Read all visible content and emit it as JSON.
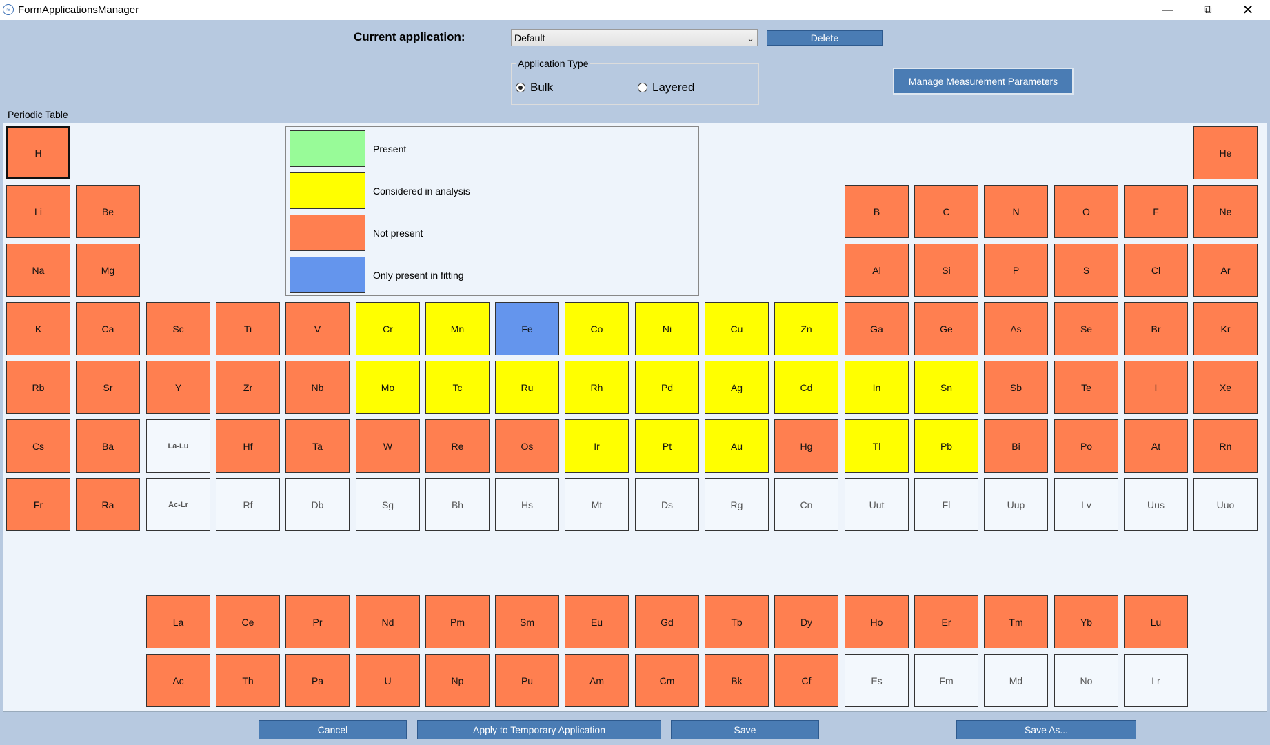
{
  "window": {
    "title": "FormApplicationsManager"
  },
  "header": {
    "current_application_label": "Current application:",
    "current_application_value": "Default",
    "delete_label": "Delete",
    "application_type_title": "Application Type",
    "radio_bulk": "Bulk",
    "radio_layered": "Layered",
    "selected_type": "Bulk",
    "manage_button": "Manage Measurement Parameters"
  },
  "periodic_table": {
    "title": "Periodic Table",
    "legend": [
      {
        "label": "Present",
        "color": "#98fb98"
      },
      {
        "label": "Considered in analysis",
        "color": "#ffff00"
      },
      {
        "label": "Not present",
        "color": "#ff7f50"
      },
      {
        "label": "Only present in fitting",
        "color": "#6495ed"
      }
    ],
    "selected": "H",
    "elements": [
      {
        "s": "H",
        "r": 1,
        "c": 1,
        "st": "np"
      },
      {
        "s": "He",
        "r": 1,
        "c": 18,
        "st": "np"
      },
      {
        "s": "Li",
        "r": 2,
        "c": 1,
        "st": "np"
      },
      {
        "s": "Be",
        "r": 2,
        "c": 2,
        "st": "np"
      },
      {
        "s": "B",
        "r": 2,
        "c": 13,
        "st": "np"
      },
      {
        "s": "C",
        "r": 2,
        "c": 14,
        "st": "np"
      },
      {
        "s": "N",
        "r": 2,
        "c": 15,
        "st": "np"
      },
      {
        "s": "O",
        "r": 2,
        "c": 16,
        "st": "np"
      },
      {
        "s": "F",
        "r": 2,
        "c": 17,
        "st": "np"
      },
      {
        "s": "Ne",
        "r": 2,
        "c": 18,
        "st": "np"
      },
      {
        "s": "Na",
        "r": 3,
        "c": 1,
        "st": "np"
      },
      {
        "s": "Mg",
        "r": 3,
        "c": 2,
        "st": "np"
      },
      {
        "s": "Al",
        "r": 3,
        "c": 13,
        "st": "np"
      },
      {
        "s": "Si",
        "r": 3,
        "c": 14,
        "st": "np"
      },
      {
        "s": "P",
        "r": 3,
        "c": 15,
        "st": "np"
      },
      {
        "s": "S",
        "r": 3,
        "c": 16,
        "st": "np"
      },
      {
        "s": "Cl",
        "r": 3,
        "c": 17,
        "st": "np"
      },
      {
        "s": "Ar",
        "r": 3,
        "c": 18,
        "st": "np"
      },
      {
        "s": "K",
        "r": 4,
        "c": 1,
        "st": "np"
      },
      {
        "s": "Ca",
        "r": 4,
        "c": 2,
        "st": "np"
      },
      {
        "s": "Sc",
        "r": 4,
        "c": 3,
        "st": "np"
      },
      {
        "s": "Ti",
        "r": 4,
        "c": 4,
        "st": "np"
      },
      {
        "s": "V",
        "r": 4,
        "c": 5,
        "st": "np"
      },
      {
        "s": "Cr",
        "r": 4,
        "c": 6,
        "st": "ca"
      },
      {
        "s": "Mn",
        "r": 4,
        "c": 7,
        "st": "ca"
      },
      {
        "s": "Fe",
        "r": 4,
        "c": 8,
        "st": "fit"
      },
      {
        "s": "Co",
        "r": 4,
        "c": 9,
        "st": "ca"
      },
      {
        "s": "Ni",
        "r": 4,
        "c": 10,
        "st": "ca"
      },
      {
        "s": "Cu",
        "r": 4,
        "c": 11,
        "st": "ca"
      },
      {
        "s": "Zn",
        "r": 4,
        "c": 12,
        "st": "ca"
      },
      {
        "s": "Ga",
        "r": 4,
        "c": 13,
        "st": "np"
      },
      {
        "s": "Ge",
        "r": 4,
        "c": 14,
        "st": "np"
      },
      {
        "s": "As",
        "r": 4,
        "c": 15,
        "st": "np"
      },
      {
        "s": "Se",
        "r": 4,
        "c": 16,
        "st": "np"
      },
      {
        "s": "Br",
        "r": 4,
        "c": 17,
        "st": "np"
      },
      {
        "s": "Kr",
        "r": 4,
        "c": 18,
        "st": "np"
      },
      {
        "s": "Rb",
        "r": 5,
        "c": 1,
        "st": "np"
      },
      {
        "s": "Sr",
        "r": 5,
        "c": 2,
        "st": "np"
      },
      {
        "s": "Y",
        "r": 5,
        "c": 3,
        "st": "np"
      },
      {
        "s": "Zr",
        "r": 5,
        "c": 4,
        "st": "np"
      },
      {
        "s": "Nb",
        "r": 5,
        "c": 5,
        "st": "np"
      },
      {
        "s": "Mo",
        "r": 5,
        "c": 6,
        "st": "ca"
      },
      {
        "s": "Tc",
        "r": 5,
        "c": 7,
        "st": "ca"
      },
      {
        "s": "Ru",
        "r": 5,
        "c": 8,
        "st": "ca"
      },
      {
        "s": "Rh",
        "r": 5,
        "c": 9,
        "st": "ca"
      },
      {
        "s": "Pd",
        "r": 5,
        "c": 10,
        "st": "ca"
      },
      {
        "s": "Ag",
        "r": 5,
        "c": 11,
        "st": "ca"
      },
      {
        "s": "Cd",
        "r": 5,
        "c": 12,
        "st": "ca"
      },
      {
        "s": "In",
        "r": 5,
        "c": 13,
        "st": "ca"
      },
      {
        "s": "Sn",
        "r": 5,
        "c": 14,
        "st": "ca"
      },
      {
        "s": "Sb",
        "r": 5,
        "c": 15,
        "st": "np"
      },
      {
        "s": "Te",
        "r": 5,
        "c": 16,
        "st": "np"
      },
      {
        "s": "I",
        "r": 5,
        "c": 17,
        "st": "np"
      },
      {
        "s": "Xe",
        "r": 5,
        "c": 18,
        "st": "np"
      },
      {
        "s": "Cs",
        "r": 6,
        "c": 1,
        "st": "np"
      },
      {
        "s": "Ba",
        "r": 6,
        "c": 2,
        "st": "np"
      },
      {
        "s": "La-Lu",
        "r": 6,
        "c": 3,
        "st": "na",
        "small": true
      },
      {
        "s": "Hf",
        "r": 6,
        "c": 4,
        "st": "np"
      },
      {
        "s": "Ta",
        "r": 6,
        "c": 5,
        "st": "np"
      },
      {
        "s": "W",
        "r": 6,
        "c": 6,
        "st": "np"
      },
      {
        "s": "Re",
        "r": 6,
        "c": 7,
        "st": "np"
      },
      {
        "s": "Os",
        "r": 6,
        "c": 8,
        "st": "np"
      },
      {
        "s": "Ir",
        "r": 6,
        "c": 9,
        "st": "ca"
      },
      {
        "s": "Pt",
        "r": 6,
        "c": 10,
        "st": "ca"
      },
      {
        "s": "Au",
        "r": 6,
        "c": 11,
        "st": "ca"
      },
      {
        "s": "Hg",
        "r": 6,
        "c": 12,
        "st": "np"
      },
      {
        "s": "Tl",
        "r": 6,
        "c": 13,
        "st": "ca"
      },
      {
        "s": "Pb",
        "r": 6,
        "c": 14,
        "st": "ca"
      },
      {
        "s": "Bi",
        "r": 6,
        "c": 15,
        "st": "np"
      },
      {
        "s": "Po",
        "r": 6,
        "c": 16,
        "st": "np"
      },
      {
        "s": "At",
        "r": 6,
        "c": 17,
        "st": "np"
      },
      {
        "s": "Rn",
        "r": 6,
        "c": 18,
        "st": "np"
      },
      {
        "s": "Fr",
        "r": 7,
        "c": 1,
        "st": "np"
      },
      {
        "s": "Ra",
        "r": 7,
        "c": 2,
        "st": "np"
      },
      {
        "s": "Ac-Lr",
        "r": 7,
        "c": 3,
        "st": "na",
        "small": true
      },
      {
        "s": "Rf",
        "r": 7,
        "c": 4,
        "st": "na"
      },
      {
        "s": "Db",
        "r": 7,
        "c": 5,
        "st": "na"
      },
      {
        "s": "Sg",
        "r": 7,
        "c": 6,
        "st": "na"
      },
      {
        "s": "Bh",
        "r": 7,
        "c": 7,
        "st": "na"
      },
      {
        "s": "Hs",
        "r": 7,
        "c": 8,
        "st": "na"
      },
      {
        "s": "Mt",
        "r": 7,
        "c": 9,
        "st": "na"
      },
      {
        "s": "Ds",
        "r": 7,
        "c": 10,
        "st": "na"
      },
      {
        "s": "Rg",
        "r": 7,
        "c": 11,
        "st": "na"
      },
      {
        "s": "Cn",
        "r": 7,
        "c": 12,
        "st": "na"
      },
      {
        "s": "Uut",
        "r": 7,
        "c": 13,
        "st": "na"
      },
      {
        "s": "Fl",
        "r": 7,
        "c": 14,
        "st": "na"
      },
      {
        "s": "Uup",
        "r": 7,
        "c": 15,
        "st": "na"
      },
      {
        "s": "Lv",
        "r": 7,
        "c": 16,
        "st": "na"
      },
      {
        "s": "Uus",
        "r": 7,
        "c": 17,
        "st": "na"
      },
      {
        "s": "Uuo",
        "r": 7,
        "c": 18,
        "st": "na"
      },
      {
        "s": "La",
        "r": 9,
        "c": 3,
        "st": "np"
      },
      {
        "s": "Ce",
        "r": 9,
        "c": 4,
        "st": "np"
      },
      {
        "s": "Pr",
        "r": 9,
        "c": 5,
        "st": "np"
      },
      {
        "s": "Nd",
        "r": 9,
        "c": 6,
        "st": "np"
      },
      {
        "s": "Pm",
        "r": 9,
        "c": 7,
        "st": "np"
      },
      {
        "s": "Sm",
        "r": 9,
        "c": 8,
        "st": "np"
      },
      {
        "s": "Eu",
        "r": 9,
        "c": 9,
        "st": "np"
      },
      {
        "s": "Gd",
        "r": 9,
        "c": 10,
        "st": "np"
      },
      {
        "s": "Tb",
        "r": 9,
        "c": 11,
        "st": "np"
      },
      {
        "s": "Dy",
        "r": 9,
        "c": 12,
        "st": "np"
      },
      {
        "s": "Ho",
        "r": 9,
        "c": 13,
        "st": "np"
      },
      {
        "s": "Er",
        "r": 9,
        "c": 14,
        "st": "np"
      },
      {
        "s": "Tm",
        "r": 9,
        "c": 15,
        "st": "np"
      },
      {
        "s": "Yb",
        "r": 9,
        "c": 16,
        "st": "np"
      },
      {
        "s": "Lu",
        "r": 9,
        "c": 17,
        "st": "np"
      },
      {
        "s": "Ac",
        "r": 10,
        "c": 3,
        "st": "np"
      },
      {
        "s": "Th",
        "r": 10,
        "c": 4,
        "st": "np"
      },
      {
        "s": "Pa",
        "r": 10,
        "c": 5,
        "st": "np"
      },
      {
        "s": "U",
        "r": 10,
        "c": 6,
        "st": "np"
      },
      {
        "s": "Np",
        "r": 10,
        "c": 7,
        "st": "np"
      },
      {
        "s": "Pu",
        "r": 10,
        "c": 8,
        "st": "np"
      },
      {
        "s": "Am",
        "r": 10,
        "c": 9,
        "st": "np"
      },
      {
        "s": "Cm",
        "r": 10,
        "c": 10,
        "st": "np"
      },
      {
        "s": "Bk",
        "r": 10,
        "c": 11,
        "st": "np"
      },
      {
        "s": "Cf",
        "r": 10,
        "c": 12,
        "st": "np"
      },
      {
        "s": "Es",
        "r": 10,
        "c": 13,
        "st": "na"
      },
      {
        "s": "Fm",
        "r": 10,
        "c": 14,
        "st": "na"
      },
      {
        "s": "Md",
        "r": 10,
        "c": 15,
        "st": "na"
      },
      {
        "s": "No",
        "r": 10,
        "c": 16,
        "st": "na"
      },
      {
        "s": "Lr",
        "r": 10,
        "c": 17,
        "st": "na"
      }
    ]
  },
  "footer": {
    "cancel": "Cancel",
    "apply_temp": "Apply to Temporary Application",
    "save": "Save",
    "save_as": "Save As..."
  }
}
